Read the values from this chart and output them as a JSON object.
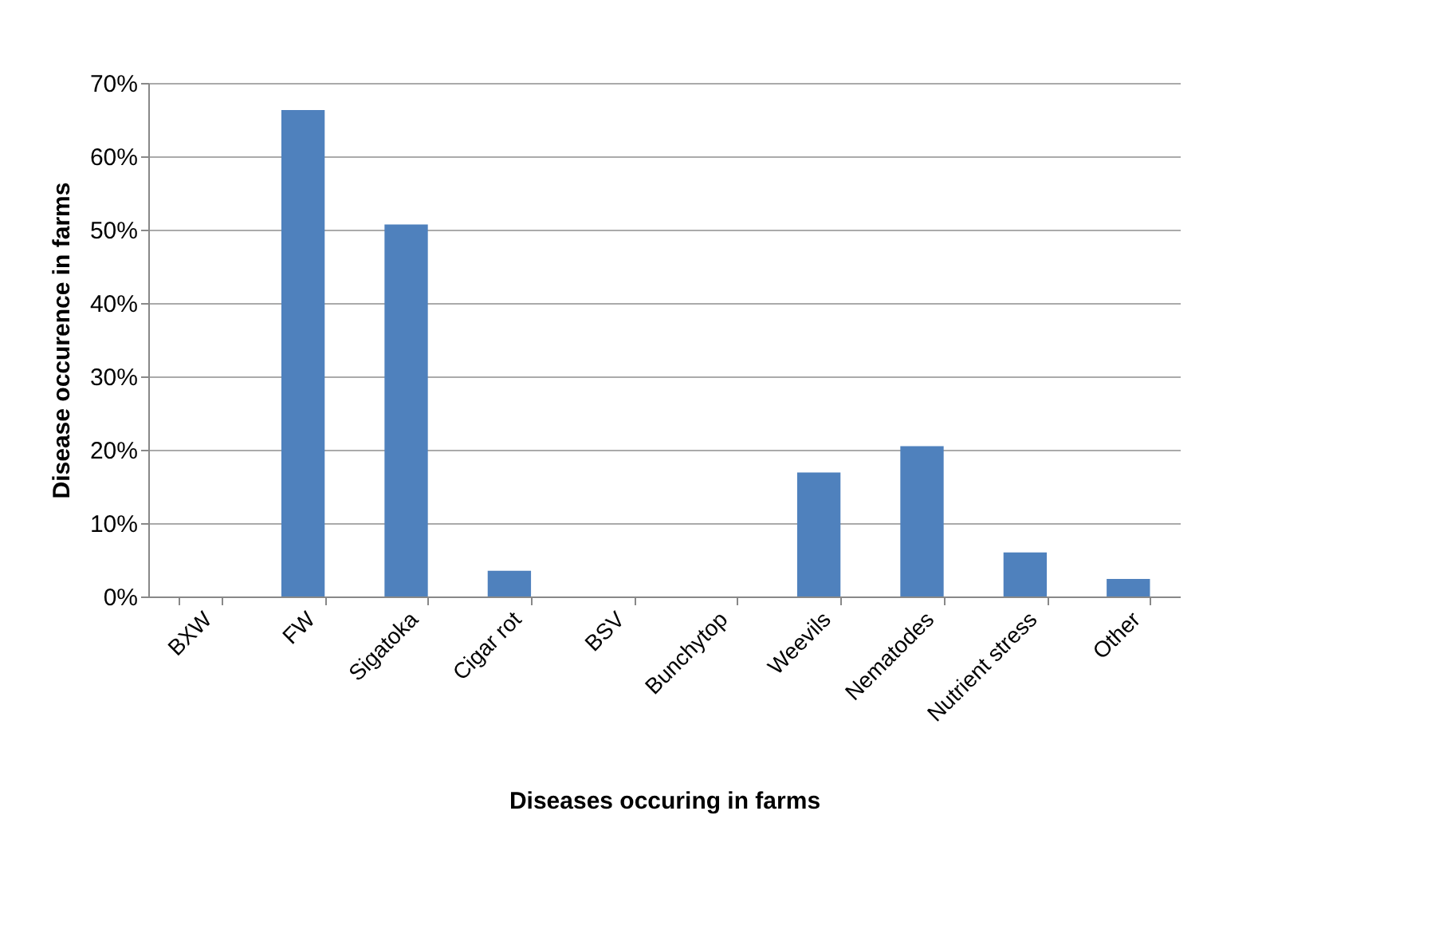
{
  "chart_data": {
    "type": "bar",
    "xlabel": "Diseases occuring in farms",
    "ylabel": "Disease occurence in farms",
    "categories": [
      "BXW",
      "FW",
      "Sigatoka",
      "Cigar rot",
      "BSV",
      "Bunchytop",
      "Weevils",
      "Nematodes",
      "Nutrient stress",
      "Other"
    ],
    "values": [
      0,
      66.3,
      50.7,
      3.5,
      0,
      0,
      16.9,
      20.5,
      6.0,
      2.4
    ],
    "color": "#4f81bd",
    "ylim": [
      0,
      70
    ],
    "yticks": [
      {
        "value": 0,
        "label": "0%"
      },
      {
        "value": 10,
        "label": "10%"
      },
      {
        "value": 20,
        "label": "20%"
      },
      {
        "value": 30,
        "label": "30%"
      },
      {
        "value": 40,
        "label": "40%"
      },
      {
        "value": 50,
        "label": "50%"
      },
      {
        "value": 60,
        "label": "60%"
      },
      {
        "value": 70,
        "label": "70%"
      }
    ],
    "grid": "y"
  }
}
